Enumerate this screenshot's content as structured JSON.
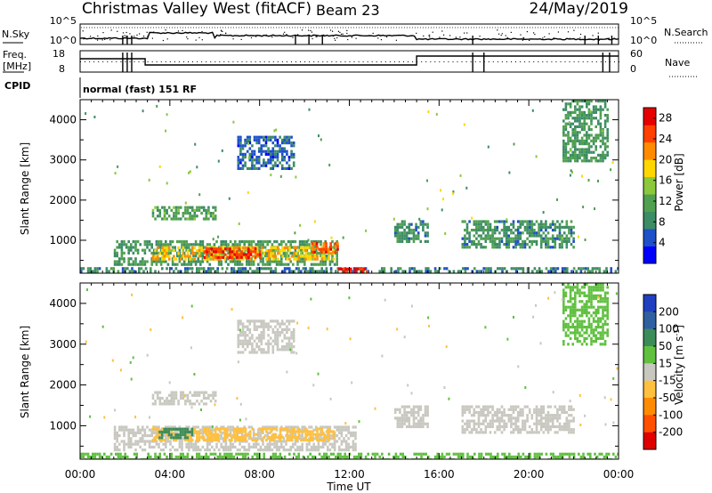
{
  "header": {
    "station": "Christmas Valley West (fitACF)",
    "beam": "Beam 23",
    "date": "24/May/2019"
  },
  "summary": {
    "nsky_label": "N.Sky",
    "nsky_ticks": [
      "10^5",
      "10^0"
    ],
    "nsearch_label": "N.Search",
    "freq_label": "Freq.",
    "freq_unit": "[MHz]",
    "freq_ticks": [
      "18",
      "8"
    ],
    "nave_label": "Nave",
    "nave_ticks": [
      "60",
      "0"
    ],
    "cpid_label": "CPID",
    "cpid_text": "normal (fast) 151 RF"
  },
  "colors": {
    "power": [
      "#0000ff",
      "#1e50c8",
      "#3c8c64",
      "#50a050",
      "#8cc83c",
      "#ffd700",
      "#ff8c00",
      "#ff4000",
      "#e60000"
    ],
    "velocity": [
      "#2040c0",
      "#3060a0",
      "#3c8c5a",
      "#60c040",
      "#c8c8c0",
      "#ffc040",
      "#ff8c00",
      "#ff5000",
      "#e00000"
    ]
  },
  "chart_data": [
    {
      "type": "heatmap",
      "name": "power",
      "xlabel": "Time UT",
      "ylabel": "Slant Range [km]",
      "x_ticks": [
        "00:00",
        "04:00",
        "08:00",
        "12:00",
        "16:00",
        "20:00",
        "00:00"
      ],
      "xlim_hours": [
        0,
        24
      ],
      "ylim": [
        180,
        4500
      ],
      "y_ticks": [
        1000,
        2000,
        3000,
        4000
      ],
      "colorbar": {
        "label": "Power [dB]",
        "ticks": [
          "4",
          "8",
          "12",
          "16",
          "20",
          "24",
          "28"
        ],
        "range": [
          0,
          30
        ]
      },
      "regions": [
        {
          "t": [
            0,
            24
          ],
          "r": [
            200,
            330
          ],
          "v": 8
        },
        {
          "t": [
            1.5,
            11.5
          ],
          "r": [
            420,
            1000
          ],
          "v": 10
        },
        {
          "t": [
            3.2,
            11.3
          ],
          "r": [
            520,
            850
          ],
          "v": 19
        },
        {
          "t": [
            5.5,
            8.0
          ],
          "r": [
            580,
            820
          ],
          "v": 26
        },
        {
          "t": [
            10.3,
            11.5
          ],
          "r": [
            700,
            950
          ],
          "v": 24
        },
        {
          "t": [
            11.5,
            12.8
          ],
          "r": [
            200,
            320
          ],
          "v": 27
        },
        {
          "t": [
            3.2,
            6.0
          ],
          "r": [
            1550,
            1850
          ],
          "v": 11
        },
        {
          "t": [
            14.0,
            15.5
          ],
          "r": [
            950,
            1500
          ],
          "v": 9
        },
        {
          "t": [
            17.0,
            22.0
          ],
          "r": [
            850,
            1500
          ],
          "v": 9
        },
        {
          "t": [
            7.0,
            9.5
          ],
          "r": [
            2800,
            3600
          ],
          "v": 6
        },
        {
          "t": [
            21.5,
            23.5
          ],
          "r": [
            3000,
            4500
          ],
          "v": 10
        }
      ]
    },
    {
      "type": "heatmap",
      "name": "velocity",
      "xlabel": "Time UT",
      "ylabel": "Slant Range [km]",
      "x_ticks": [
        "00:00",
        "04:00",
        "08:00",
        "12:00",
        "16:00",
        "20:00",
        "00:00"
      ],
      "xlim_hours": [
        0,
        24
      ],
      "ylim": [
        180,
        4500
      ],
      "y_ticks": [
        1000,
        2000,
        3000,
        4000
      ],
      "colorbar": {
        "label": "Velocity [m s^-1]",
        "ticks": [
          "200",
          "100",
          "50",
          "15",
          "-15",
          "-50",
          "-100",
          "-200"
        ],
        "bins": [
          200,
          100,
          50,
          15,
          -15,
          -50,
          -100,
          -200
        ]
      },
      "regions": [
        {
          "t": [
            0,
            24
          ],
          "r": [
            200,
            340
          ],
          "v": 30
        },
        {
          "t": [
            1.5,
            12.3
          ],
          "r": [
            420,
            1000
          ],
          "v": 0
        },
        {
          "t": [
            3.2,
            11.3
          ],
          "r": [
            620,
            960
          ],
          "v": -40
        },
        {
          "t": [
            3.5,
            5.0
          ],
          "r": [
            700,
            950
          ],
          "v": 60
        },
        {
          "t": [
            3.2,
            6.0
          ],
          "r": [
            1550,
            1850
          ],
          "v": 0
        },
        {
          "t": [
            14.0,
            15.5
          ],
          "r": [
            950,
            1500
          ],
          "v": 0
        },
        {
          "t": [
            17.0,
            22.0
          ],
          "r": [
            850,
            1500
          ],
          "v": 0
        },
        {
          "t": [
            7.0,
            9.5
          ],
          "r": [
            2800,
            3600
          ],
          "v": 0
        },
        {
          "t": [
            21.5,
            23.5
          ],
          "r": [
            3000,
            4500
          ],
          "v": 40
        }
      ]
    }
  ]
}
